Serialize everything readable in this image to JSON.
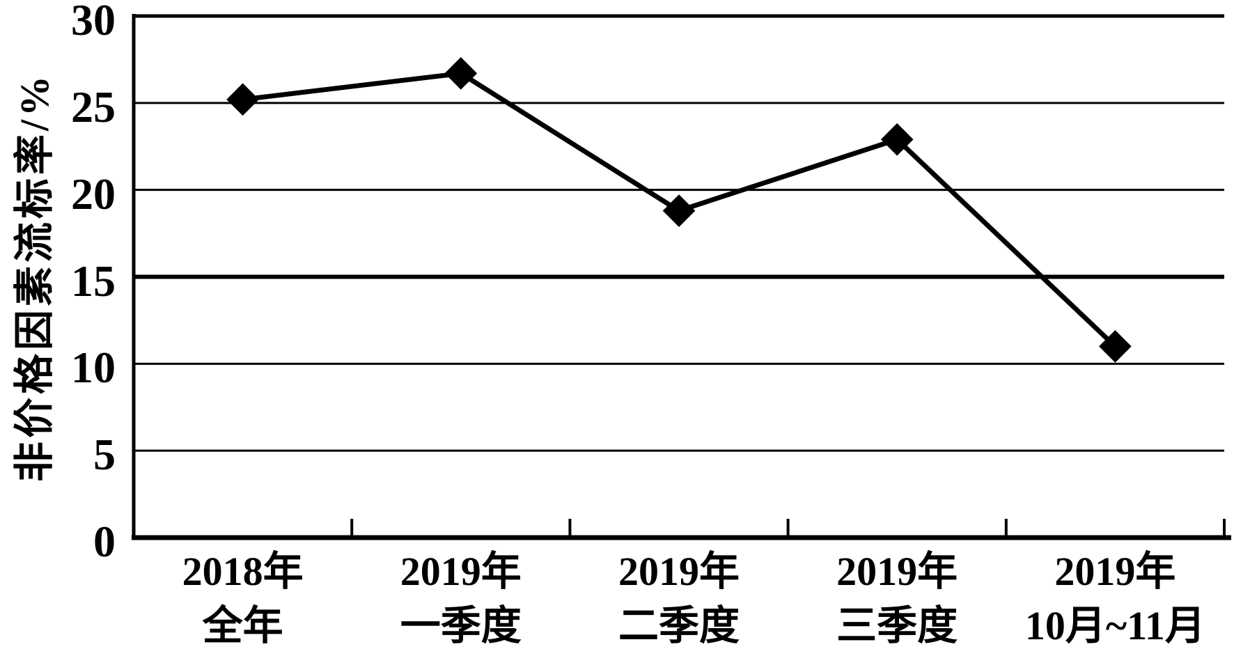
{
  "chart_data": {
    "type": "line",
    "title": "",
    "xlabel": "",
    "ylabel": "非价格因素流标率/%",
    "categories": [
      [
        "2018年",
        "全年"
      ],
      [
        "2019年",
        "一季度"
      ],
      [
        "2019年",
        "二季度"
      ],
      [
        "2019年",
        "三季度"
      ],
      [
        "2019年",
        "10月~11月"
      ]
    ],
    "values": [
      25.2,
      26.7,
      18.8,
      22.9,
      11.0
    ],
    "series_name": "非价格因素流标率/%",
    "ylim": [
      0,
      30
    ],
    "y_ticks": [
      0,
      5,
      10,
      15,
      20,
      25,
      30
    ],
    "grid": "horizontal",
    "emphasized_gridlines": [
      15
    ],
    "legend": "none",
    "marker": "diamond",
    "colors": {
      "line": "#000000",
      "marker": "#000000",
      "axis": "#000000",
      "text": "#000000",
      "background": "#ffffff"
    }
  }
}
